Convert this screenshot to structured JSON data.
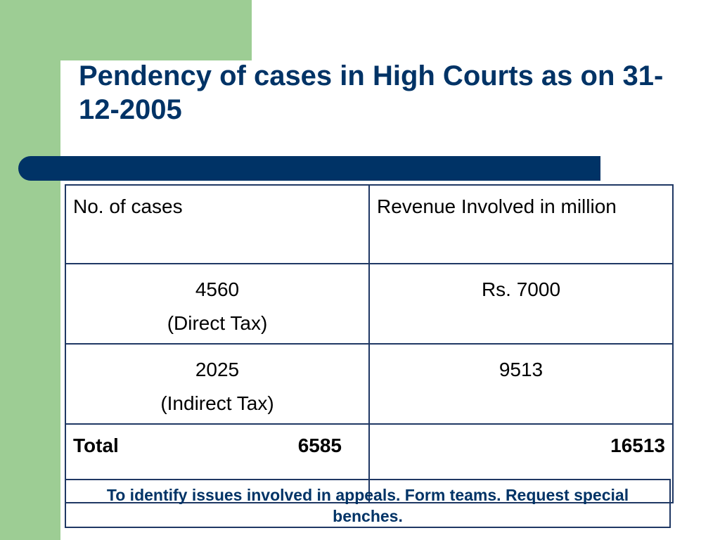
{
  "slide": {
    "title": "Pendency of cases in High Courts as on 31-12-2005"
  },
  "table": {
    "headers": [
      "No. of cases",
      "Revenue Involved in million"
    ],
    "rows": [
      {
        "cases": "4560",
        "type": "(Direct Tax)",
        "revenue": "Rs. 7000"
      },
      {
        "cases": "2025",
        "type": "(Indirect Tax)",
        "revenue": "9513"
      }
    ],
    "total": {
      "label": "Total",
      "cases": "6585",
      "revenue": "16513"
    }
  },
  "note": "To identify issues involved in appeals. Form teams. Request  special benches.",
  "colors": {
    "accent_green": "#9dcd94",
    "title_blue": "#003366",
    "border_blue": "#1f3864"
  }
}
